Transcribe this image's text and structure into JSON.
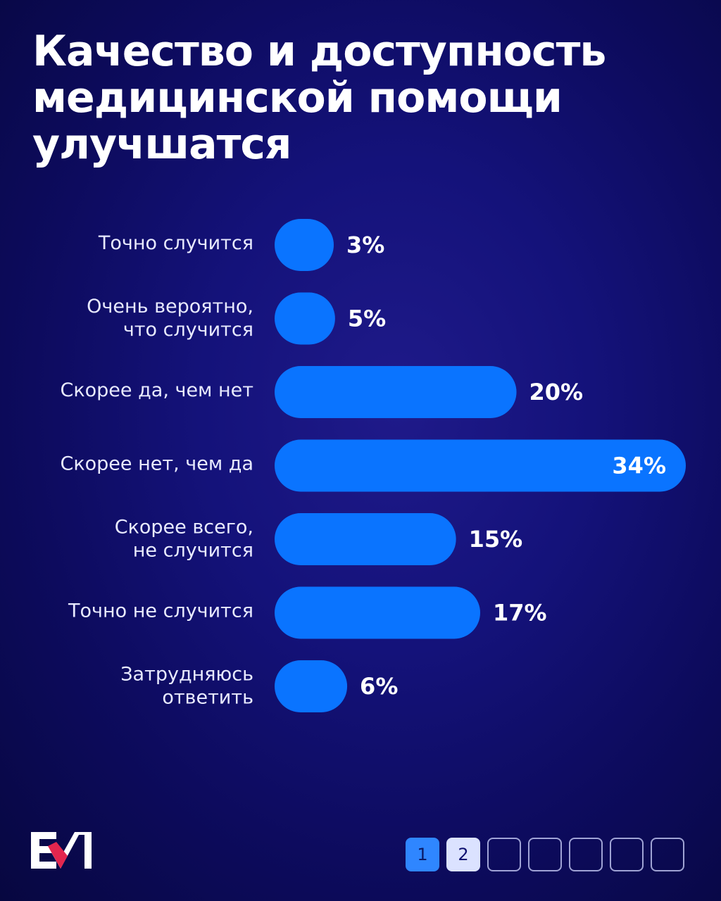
{
  "title_lines": [
    "Качество и доступность",
    "медицинской помощи",
    "улучшатся"
  ],
  "chart_data": {
    "type": "bar",
    "orientation": "horizontal",
    "categories": [
      [
        "Точно случится"
      ],
      [
        "Очень вероятно,",
        "что случится"
      ],
      [
        "Скорее да, чем нет"
      ],
      [
        "Скорее нет, чем да"
      ],
      [
        "Скорее всего,",
        "не случится"
      ],
      [
        "Точно не случится"
      ],
      [
        "Затрудняюсь",
        "ответить"
      ]
    ],
    "values": [
      3,
      5,
      20,
      34,
      15,
      17,
      6
    ],
    "value_labels": [
      "3%",
      "5%",
      "20%",
      "34%",
      "15%",
      "17%",
      "6%"
    ],
    "unit": "%",
    "bar_color": "#0a74ff",
    "grid": false,
    "legend": "none"
  },
  "pagination": {
    "pages": [
      "1",
      "2",
      "",
      "",
      "",
      "",
      ""
    ],
    "current": "1"
  },
  "logo": {
    "name": "brand-logo",
    "colors": [
      "#ffffff",
      "#e3264e"
    ]
  }
}
